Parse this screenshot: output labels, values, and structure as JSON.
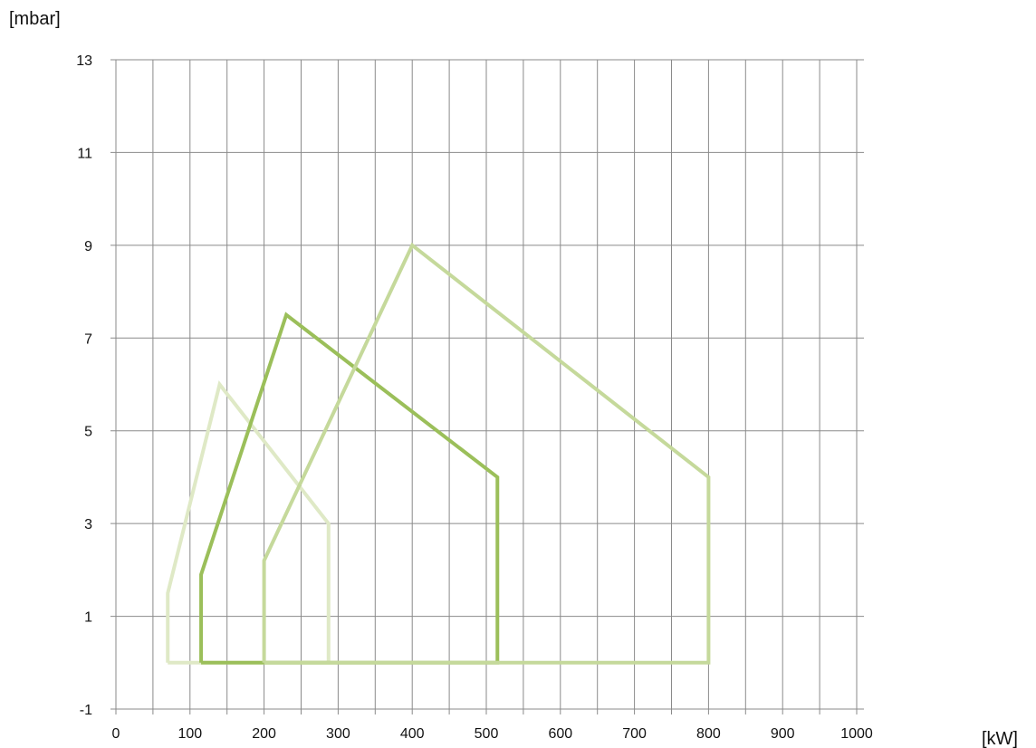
{
  "chart_data": {
    "type": "line",
    "y_unit_label": "[mbar]",
    "x_unit_label": "[kW]",
    "xlim": [
      0,
      1000
    ],
    "ylim": [
      -1,
      13
    ],
    "x_ticks": [
      0,
      100,
      200,
      300,
      400,
      500,
      600,
      700,
      800,
      900,
      1000
    ],
    "y_ticks": [
      -1,
      1,
      3,
      5,
      7,
      9,
      11,
      13
    ],
    "x_grid_step": 50,
    "grid": true,
    "series": [
      {
        "color": "#dfe9c6",
        "points": [
          [
            70,
            0
          ],
          [
            70,
            1.5
          ],
          [
            140,
            6
          ],
          [
            287,
            3
          ],
          [
            287,
            0
          ],
          [
            70,
            0
          ]
        ]
      },
      {
        "color": "#9bbf5a",
        "points": [
          [
            115,
            0
          ],
          [
            115,
            1.9
          ],
          [
            230,
            7.5
          ],
          [
            515,
            4
          ],
          [
            515,
            0
          ],
          [
            115,
            0
          ]
        ]
      },
      {
        "color": "#c5d99b",
        "points": [
          [
            200,
            0
          ],
          [
            200,
            2.2
          ],
          [
            400,
            9
          ],
          [
            800,
            4
          ],
          [
            800,
            0
          ],
          [
            200,
            0
          ]
        ]
      }
    ]
  }
}
